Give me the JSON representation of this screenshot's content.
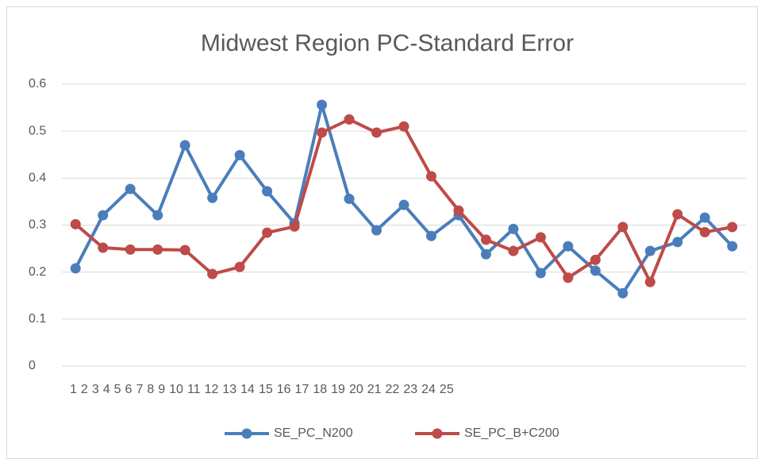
{
  "chart_data": {
    "type": "line",
    "title": "Midwest Region PC-Standard Error",
    "categories": [
      1,
      2,
      3,
      4,
      5,
      6,
      7,
      8,
      9,
      10,
      11,
      12,
      13,
      14,
      15,
      16,
      17,
      18,
      19,
      20,
      21,
      22,
      23,
      24,
      25
    ],
    "series": [
      {
        "name": "SE_PC_N200",
        "color": "#4a7ebb",
        "values": [
          0.208,
          0.321,
          0.377,
          0.321,
          0.47,
          0.358,
          0.449,
          0.372,
          0.304,
          0.556,
          0.356,
          0.289,
          0.343,
          0.277,
          0.321,
          0.238,
          0.292,
          0.198,
          0.255,
          0.203,
          0.155,
          0.245,
          0.264,
          0.316,
          0.255
        ]
      },
      {
        "name": "SE_PC_B+C200",
        "color": "#be4b48",
        "values": [
          0.302,
          0.252,
          0.248,
          0.248,
          0.247,
          0.196,
          0.211,
          0.284,
          0.297,
          0.497,
          0.525,
          0.497,
          0.51,
          0.404,
          0.331,
          0.269,
          0.245,
          0.274,
          0.188,
          0.226,
          0.296,
          0.179,
          0.323,
          0.285,
          0.296
        ]
      }
    ],
    "ylim": [
      0,
      0.6
    ],
    "yticks": [
      0,
      0.1,
      0.2,
      0.3,
      0.4,
      0.5,
      0.6
    ],
    "grid": true,
    "legend": "bottom"
  }
}
